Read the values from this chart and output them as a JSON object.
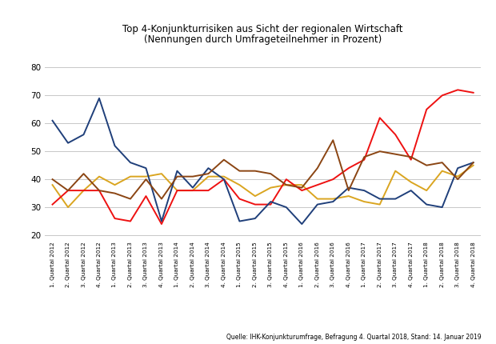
{
  "title_line1": "Top 4-Konjunkturrisiken aus Sicht der regionalen Wirtschaft",
  "title_line2": "(Nennungen durch Umfrageteilnehmer in Prozent)",
  "source": "Quelle: IHK-Konjunkturumfrage, Befragung 4. Quartal 2018, Stand: 14. Januar 2019",
  "xlabels": [
    "1. Quartal 2012",
    "2. Quartal 2012",
    "3. Quartal 2012",
    "4. Quartal 2012",
    "1. Quartal 2013",
    "2. Quartal 2013",
    "3. Quartal 2013",
    "4. Quartal 2013",
    "1. Quartal 2014",
    "2. Quartal 2014",
    "3. Quartal 2014",
    "4. Quartal 2014",
    "1. Quartal 2015",
    "2. Quartal 2015",
    "3. Quartal 2015",
    "4. Quartal 2015",
    "1. Quartal 2016",
    "2. Quartal 2016",
    "3. Quartal 2016",
    "4. Quartal 2016",
    "1. Quartal 2017",
    "2. Quartal 2017",
    "3. Quartal 2017",
    "4. Quartal 2017",
    "1. Quartal 2018",
    "2. Quartal 2018",
    "3. Quartal 2018",
    "4. Quartal 2018"
  ],
  "ylim": [
    18,
    82
  ],
  "yticks": [
    20,
    30,
    40,
    50,
    60,
    70,
    80
  ],
  "series": {
    "Arbeitskosten": {
      "color": "#DAA520",
      "values": [
        38,
        30,
        36,
        41,
        38,
        41,
        41,
        42,
        36,
        36,
        41,
        41,
        38,
        34,
        37,
        38,
        38,
        33,
        33,
        34,
        32,
        31,
        43,
        39,
        36,
        43,
        41,
        45
      ]
    },
    "Fachkräftemangel": {
      "color": "#EE1111",
      "values": [
        31,
        36,
        36,
        36,
        26,
        25,
        34,
        24,
        36,
        36,
        36,
        40,
        33,
        31,
        31,
        40,
        36,
        38,
        40,
        44,
        47,
        62,
        56,
        47,
        65,
        70,
        72,
        71
      ]
    },
    "Energiepreise": {
      "color": "#1F3F7A",
      "values": [
        61,
        53,
        56,
        69,
        52,
        46,
        44,
        25,
        43,
        37,
        44,
        40,
        25,
        26,
        32,
        30,
        24,
        31,
        32,
        37,
        36,
        33,
        33,
        36,
        31,
        30,
        44,
        46
      ]
    },
    "Wirtschaftspolitische Rahmenbedingungen": {
      "color": "#8B4513",
      "values": [
        40,
        36,
        42,
        36,
        35,
        33,
        40,
        33,
        41,
        41,
        42,
        47,
        43,
        43,
        42,
        38,
        37,
        44,
        54,
        36,
        48,
        50,
        49,
        48,
        45,
        46,
        40,
        46
      ]
    }
  },
  "background_color": "#FFFFFF",
  "grid_color": "#C8C8C8",
  "ihk_box_color": "#2060A0",
  "ihk_text_color": "#FFFFFF",
  "fig_width": 6.2,
  "fig_height": 4.3,
  "dpi": 100
}
